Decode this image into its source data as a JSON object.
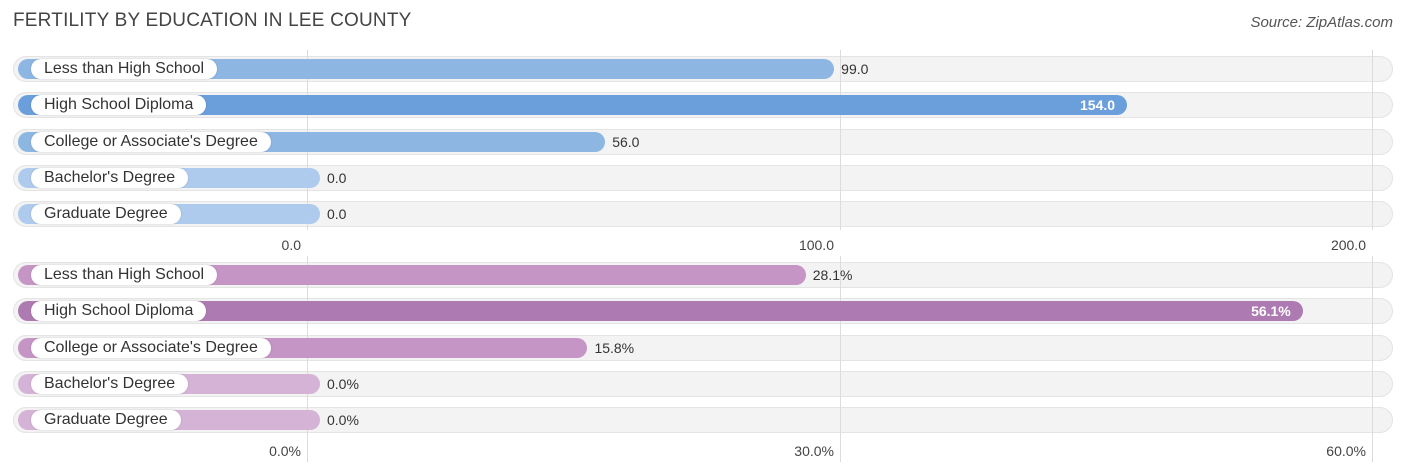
{
  "title": "FERTILITY BY EDUCATION IN LEE COUNTY",
  "source": "Source: ZipAtlas.com",
  "chart_data": [
    {
      "type": "bar",
      "orientation": "horizontal",
      "categories": [
        "Less than High School",
        "High School Diploma",
        "College or Associate's Degree",
        "Bachelor's Degree",
        "Graduate Degree"
      ],
      "values": [
        99.0,
        154.0,
        56.0,
        0.0,
        0.0
      ],
      "value_labels": [
        "99.0",
        "154.0",
        "56.0",
        "0.0",
        "0.0"
      ],
      "xlim": [
        0,
        200
      ],
      "ticks": [
        0,
        100,
        200
      ],
      "tick_labels": [
        "0.0",
        "100.0",
        "200.0"
      ],
      "colors": [
        "#8db6e3",
        "#6a9fdc",
        "#8db6e3",
        "#aecbee",
        "#aecbee"
      ],
      "grid": true
    },
    {
      "type": "bar",
      "orientation": "horizontal",
      "categories": [
        "Less than High School",
        "High School Diploma",
        "College or Associate's Degree",
        "Bachelor's Degree",
        "Graduate Degree"
      ],
      "values": [
        28.1,
        56.1,
        15.8,
        0.0,
        0.0
      ],
      "value_labels": [
        "28.1%",
        "56.1%",
        "15.8%",
        "0.0%",
        "0.0%"
      ],
      "xlim": [
        0,
        60
      ],
      "ticks": [
        0,
        30,
        60
      ],
      "tick_labels": [
        "0.0%",
        "30.0%",
        "60.0%"
      ],
      "colors": [
        "#c595c5",
        "#ad7bb2",
        "#c595c5",
        "#d5b3d6",
        "#d5b3d6"
      ],
      "grid": true
    }
  ]
}
